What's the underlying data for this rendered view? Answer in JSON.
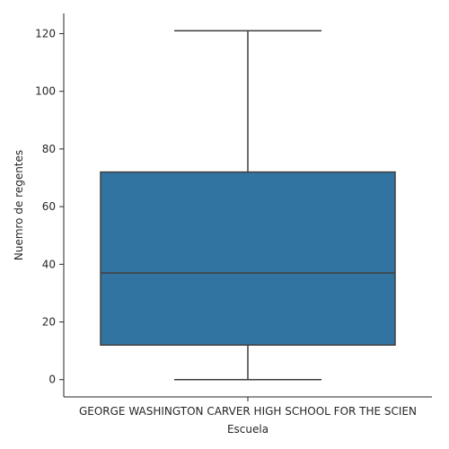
{
  "chart_data": {
    "type": "boxplot",
    "title": "",
    "xlabel": "Escuela",
    "ylabel": "Nuemro de regentes",
    "categories": [
      "GEORGE WASHINGTON CARVER HIGH SCHOOL FOR THE SCIEN"
    ],
    "boxes": [
      {
        "category": "GEORGE WASHINGTON CARVER HIGH SCHOOL FOR THE SCIEN",
        "whisker_low": 0,
        "q1": 12,
        "median": 37,
        "q3": 72,
        "whisker_high": 121
      }
    ],
    "y_ticks": [
      0,
      20,
      40,
      60,
      80,
      100,
      120
    ],
    "ylim": [
      -6,
      127
    ],
    "grid": false,
    "box_color": "#3274a1",
    "line_color": "#3f3f3f"
  }
}
